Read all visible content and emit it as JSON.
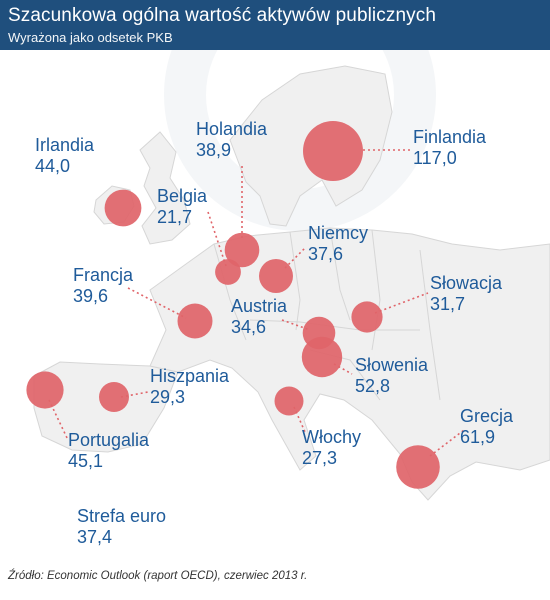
{
  "header": {
    "title": "Szacunkowa ogólna wartość aktywów publicznych",
    "subtitle": "Wyrażona jako odsetek PKB"
  },
  "colors": {
    "header_bg": "#1f4f7d",
    "bubble": "#e06469",
    "leader": "#e06469",
    "label_text": "#1f5b9a",
    "land": "#f1f1f1",
    "borders": "#d2d2d2"
  },
  "countries": [
    {
      "name": "Irlandia",
      "value": "44,0",
      "amount": 44.0
    },
    {
      "name": "Holandia",
      "value": "38,9",
      "amount": 38.9
    },
    {
      "name": "Finlandia",
      "value": "117,0",
      "amount": 117.0
    },
    {
      "name": "Belgia",
      "value": "21,7",
      "amount": 21.7
    },
    {
      "name": "Niemcy",
      "value": "37,6",
      "amount": 37.6
    },
    {
      "name": "Francja",
      "value": "39,6",
      "amount": 39.6
    },
    {
      "name": "Słowacja",
      "value": "31,7",
      "amount": 31.7
    },
    {
      "name": "Austria",
      "value": "34,6",
      "amount": 34.6
    },
    {
      "name": "Hiszpania",
      "value": "29,3",
      "amount": 29.3
    },
    {
      "name": "Słowenia",
      "value": "52,8",
      "amount": 52.8
    },
    {
      "name": "Portugalia",
      "value": "45,1",
      "amount": 45.1
    },
    {
      "name": "Włochy",
      "value": "27,3",
      "amount": 27.3
    },
    {
      "name": "Grecja",
      "value": "61,9",
      "amount": 61.9
    }
  ],
  "eurozone": {
    "name": "Strefa euro",
    "value": "37,4"
  },
  "source": "Źródło: Economic Outlook (raport OECD), czerwiec 2013 r."
}
